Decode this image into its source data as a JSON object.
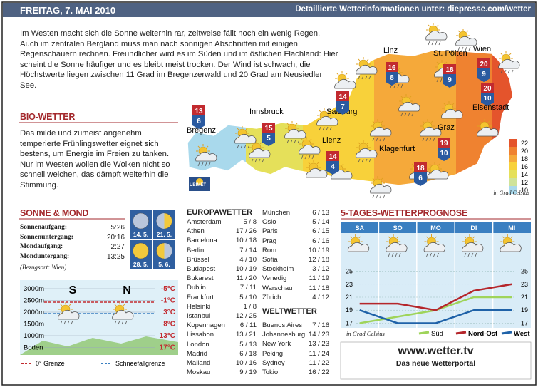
{
  "header": {
    "date": "FREITAG, 7. MAI 2010",
    "link": "Detaillierte Wetterinformationen unter: diepresse.com/wetter"
  },
  "intro": "Im Westen macht sich die Sonne weiterhin rar, zeitweise fällt noch ein wenig Regen. Auch im zentralen Bergland muss man nach sonnigen Abschnitten mit einigen Regenschauern rechnen. Freundlicher wird es im Süden und im östlichen Flachland: Hier scheint die Sonne häufiger und es bleibt meist trocken. Der Wind ist schwach, die Höchstwerte liegen zwischen 11 Grad im Bregenzerwald und 20 Grad am Neusiedler See.",
  "bio": {
    "title": "BIO-WETTER",
    "text": "Das milde und zumeist angenehm temperierte Frühlingswetter eignet sich bestens, um Energie im Freien zu tanken. Nur im Westen wollen die Wolken nicht so schnell weichen, das dämpft weiterhin die Stimmung."
  },
  "map": {
    "cities": [
      {
        "name": "Bregenz",
        "high": 13,
        "low": 6
      },
      {
        "name": "Innsbruck",
        "high": 15,
        "low": 5
      },
      {
        "name": "Salzburg",
        "high": 14,
        "low": 7
      },
      {
        "name": "Linz",
        "high": 16,
        "low": 8
      },
      {
        "name": "St. Pölten",
        "high": 18,
        "low": 9
      },
      {
        "name": "Wien",
        "high": 20,
        "low": 9
      },
      {
        "name": "Eisenstadt",
        "high": 20,
        "low": 10
      },
      {
        "name": "Graz",
        "high": 19,
        "low": 10
      },
      {
        "name": "Klagenfurt",
        "high": 18,
        "low": 6
      },
      {
        "name": "Lienz",
        "high": 14,
        "low": 4
      }
    ],
    "scale": [
      22,
      20,
      18,
      16,
      14,
      12,
      10
    ],
    "unit": "in Grad Celsius",
    "logo": "UBIMET"
  },
  "sun_moon": {
    "title": "SONNE & MOND",
    "rows": [
      {
        "label": "Sonnenaufgang:",
        "time": "5:26"
      },
      {
        "label": "Sonnenuntergang:",
        "time": "20:16"
      },
      {
        "label": "Mondaufgang:",
        "time": "2:27"
      },
      {
        "label": "Monduntergang:",
        "time": "13:25"
      }
    ],
    "note": "(Bezugsort: Wien)",
    "phases": [
      "14. 5.",
      "21. 5.",
      "28. 5.",
      "5. 6."
    ]
  },
  "altitude": {
    "left": "S",
    "right": "N",
    "rows": [
      {
        "level": "3000m",
        "temp": "-5°C"
      },
      {
        "level": "2500m",
        "temp": "-1°C"
      },
      {
        "level": "2000m",
        "temp": "3°C"
      },
      {
        "level": "1500m",
        "temp": "8°C"
      },
      {
        "level": "1000m",
        "temp": "13°C"
      },
      {
        "level": "Boden",
        "temp": "17°C"
      }
    ],
    "legend": [
      "0° Grenze",
      "Schneefallgrenze"
    ]
  },
  "europe": {
    "title": "EUROPAWETTER",
    "rows": [
      {
        "city": "Amsterdam",
        "temps": "5 / 8"
      },
      {
        "city": "Athen",
        "temps": "17 / 26"
      },
      {
        "city": "Barcelona",
        "temps": "10 / 18"
      },
      {
        "city": "Berlin",
        "temps": "7 / 14"
      },
      {
        "city": "Brüssel",
        "temps": "4 / 10"
      },
      {
        "city": "Budapest",
        "temps": "10 / 19"
      },
      {
        "city": "Bukarest",
        "temps": "11 / 20"
      },
      {
        "city": "Dublin",
        "temps": "7 / 11"
      },
      {
        "city": "Frankfurt",
        "temps": "5 / 10"
      },
      {
        "city": "Helsinki",
        "temps": "1 / 8"
      },
      {
        "city": "Istanbul",
        "temps": "12 / 25"
      },
      {
        "city": "Kopenhagen",
        "temps": "6 / 11"
      },
      {
        "city": "Lissabon",
        "temps": "13 / 21"
      },
      {
        "city": "London",
        "temps": "5 / 13"
      },
      {
        "city": "Madrid",
        "temps": "6 / 18"
      },
      {
        "city": "Mailand",
        "temps": "10 / 16"
      },
      {
        "city": "Moskau",
        "temps": "9 / 19"
      },
      {
        "city": "München",
        "temps": "6 / 13"
      },
      {
        "city": "Oslo",
        "temps": "5 / 14"
      },
      {
        "city": "Paris",
        "temps": "6 / 15"
      },
      {
        "city": "Prag",
        "temps": "6 / 16"
      },
      {
        "city": "Rom",
        "temps": "10 / 19"
      },
      {
        "city": "Sofia",
        "temps": "12 / 18"
      },
      {
        "city": "Stockholm",
        "temps": "3 / 12"
      },
      {
        "city": "Venedig",
        "temps": "11 / 19"
      },
      {
        "city": "Warschau",
        "temps": "11 / 18"
      },
      {
        "city": "Zürich",
        "temps": "4 / 12"
      }
    ]
  },
  "world": {
    "title": "WELTWETTER",
    "rows": [
      {
        "city": "Buenos Aires",
        "temps": "7 / 16"
      },
      {
        "city": "Johannesburg",
        "temps": "14 / 23"
      },
      {
        "city": "New York",
        "temps": "13 / 23"
      },
      {
        "city": "Peking",
        "temps": "11 / 24"
      },
      {
        "city": "Sydney",
        "temps": "11 / 22"
      },
      {
        "city": "Tokio",
        "temps": "16 / 22"
      }
    ]
  },
  "forecast": {
    "type": "line",
    "title": "5-TAGES-WETTERPROGNOSE",
    "categories": [
      "SA",
      "SO",
      "MO",
      "DI",
      "MI"
    ],
    "ylim": [
      16.5,
      25.5
    ],
    "yticks": [
      17,
      19,
      21,
      23,
      25
    ],
    "unit": "in Grad Celsius",
    "series": [
      {
        "name": "Süd",
        "color": "#9fd45a",
        "values": [
          17,
          18,
          19,
          21,
          21
        ]
      },
      {
        "name": "Nord-Ost",
        "color": "#b5262b",
        "values": [
          20,
          20,
          19,
          22,
          23
        ]
      },
      {
        "name": "West",
        "color": "#1f62a8",
        "values": [
          19,
          17,
          17,
          19,
          19
        ]
      }
    ]
  },
  "footer": {
    "url": "www.wetter.tv",
    "tagline": "Das neue Wetterportal"
  }
}
